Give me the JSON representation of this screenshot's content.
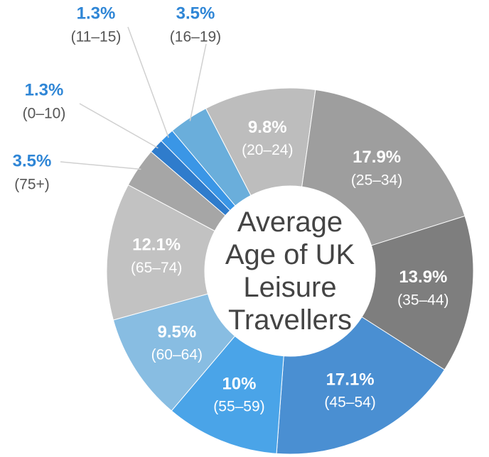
{
  "chart_data": {
    "type": "donut",
    "title": "Average Age of UK Leisure Travellers",
    "categories": [
      "(0–10)",
      "(11–15)",
      "(16–19)",
      "(20–24)",
      "(25–34)",
      "(35–44)",
      "(45–54)",
      "(55–59)",
      "(60–64)",
      "(65–74)",
      "(75+)"
    ],
    "values": [
      1.3,
      1.3,
      3.5,
      9.8,
      17.9,
      13.9,
      17.1,
      10,
      9.5,
      12.1,
      3.5
    ],
    "value_labels": [
      "1.3%",
      "1.3%",
      "3.5%",
      "9.8%",
      "17.9%",
      "13.9%",
      "17.1%",
      "10%",
      "9.5%",
      "12.1%",
      "3.5%"
    ],
    "colors": [
      "#2f7ccc",
      "#3a96e6",
      "#6aaedb",
      "#bdbdbd",
      "#9e9e9e",
      "#7e7e7e",
      "#4a8fd2",
      "#4aa4e8",
      "#88bde2",
      "#c2c2c2",
      "#a6a6a6"
    ]
  }
}
